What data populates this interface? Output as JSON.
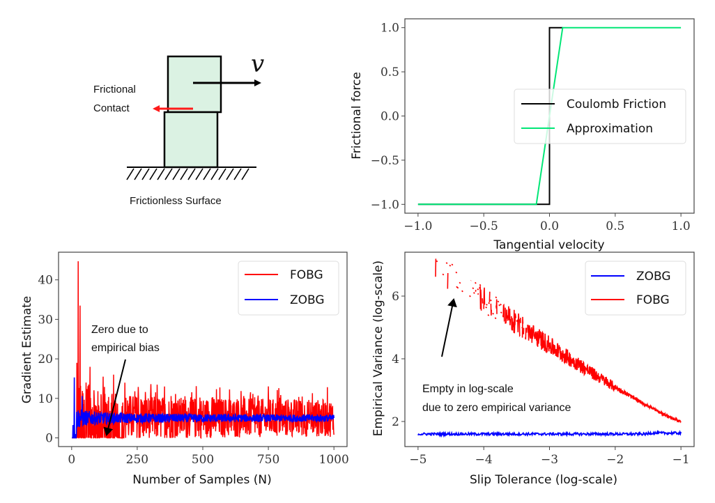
{
  "diagram": {
    "velocity_label": "v",
    "contact_label_line1": "Frictional",
    "contact_label_line2": "Contact",
    "surface_label": "Frictionless Surface",
    "block_fill": "#dbf2e3",
    "contact_arrow_color": "#ff1a1a"
  },
  "chart_data": [
    {
      "id": "friction",
      "type": "line",
      "title": "",
      "xlabel": "Tangential velocity",
      "ylabel": "Frictional force",
      "xlim": [
        -1.1,
        1.1
      ],
      "ylim": [
        -1.1,
        1.1
      ],
      "xticks": [
        -1.0,
        -0.5,
        0.0,
        0.5,
        1.0
      ],
      "xtick_labels": [
        "−1.0",
        "−0.5",
        "0.0",
        "0.5",
        "1.0"
      ],
      "yticks": [
        1.0,
        0.5,
        0.0,
        -0.5,
        -1.0
      ],
      "ytick_labels": [
        "1.0",
        "0.5",
        "0.0",
        "−0.5",
        "−1.0"
      ],
      "grid": false,
      "legend_position": "center-right",
      "series": [
        {
          "name": "Coulomb Friction",
          "color": "#000000",
          "x": [
            -1.0,
            0.0,
            0.0,
            0.1
          ],
          "y": [
            -1.0,
            -1.0,
            1.0,
            1.0
          ]
        },
        {
          "name": "Approximation",
          "color": "#00e676",
          "x": [
            -1.0,
            -0.1,
            0.1,
            1.0
          ],
          "y": [
            -1.0,
            -1.0,
            1.0,
            1.0
          ]
        }
      ]
    },
    {
      "id": "gradient",
      "type": "line",
      "title": "",
      "xlabel": "Number of Samples (N)",
      "ylabel": "Gradient  Estimate",
      "xlim": [
        -50,
        1050
      ],
      "ylim": [
        -2.2,
        47
      ],
      "xticks": [
        0,
        250,
        500,
        750,
        1000
      ],
      "xtick_labels": [
        "0",
        "250",
        "500",
        "750",
        "1000"
      ],
      "yticks": [
        0,
        10,
        20,
        30,
        40
      ],
      "ytick_labels": [
        "0",
        "10",
        "20",
        "30",
        "40"
      ],
      "grid": false,
      "legend_position": "top-right",
      "series": [
        {
          "name": "FOBG",
          "color": "#ff0000",
          "description": "noisy estimate around ~5, peaks 44.7 near N=25 and 33.5 near N=30, spread narrowing with N; many zeros for N<200",
          "mean": 5.0,
          "peaks": [
            [
              25,
              44.7
            ],
            [
              32,
              33.5
            ],
            [
              20,
              19
            ],
            [
              70,
              18
            ],
            [
              120,
              15.5
            ],
            [
              160,
              16
            ]
          ]
        },
        {
          "name": "ZOBG",
          "color": "#0000ff",
          "description": "estimate around ~5 with small spread, spike 15.3 near N=10",
          "mean": 5.0,
          "peaks": [
            [
              10,
              15.3
            ],
            [
              40,
              10.6
            ]
          ]
        }
      ],
      "annotations": [
        {
          "text_line1": "Zero due to",
          "text_line2": "empirical bias",
          "arrow_to": [
            130,
            0.5
          ]
        }
      ]
    },
    {
      "id": "variance",
      "type": "line",
      "title": "",
      "xlabel": "Slip Tolerance (log-scale)",
      "ylabel": "Empirical Variance  (log-scale)",
      "xlim": [
        -5.2,
        -0.8
      ],
      "ylim": [
        1.2,
        7.4
      ],
      "xticks": [
        -5,
        -4,
        -3,
        -2,
        -1
      ],
      "xtick_labels": [
        "−5",
        "−4",
        "−3",
        "−2",
        "−1"
      ],
      "yticks": [
        2,
        4,
        6
      ],
      "ytick_labels": [
        "2",
        "4",
        "6"
      ],
      "grid": false,
      "legend_position": "top-right",
      "series": [
        {
          "name": "ZOBG",
          "color": "#0000ff",
          "x_range": [
            -5,
            -1
          ],
          "approx_value": 1.6
        },
        {
          "name": "FOBG",
          "color": "#ff0000",
          "x_range": [
            -4.75,
            -1
          ],
          "start_value": 7.0,
          "end_value": 2.0,
          "description": "sparse/broken for x < -3.5 (zeros omitted in log-scale), noisy decreasing curve"
        }
      ],
      "annotations": [
        {
          "text_line1": "Empty in log-scale",
          "text_line2": "due to zero empirical variance",
          "arrow_to": [
            -4.4,
            6.0
          ]
        }
      ]
    }
  ]
}
